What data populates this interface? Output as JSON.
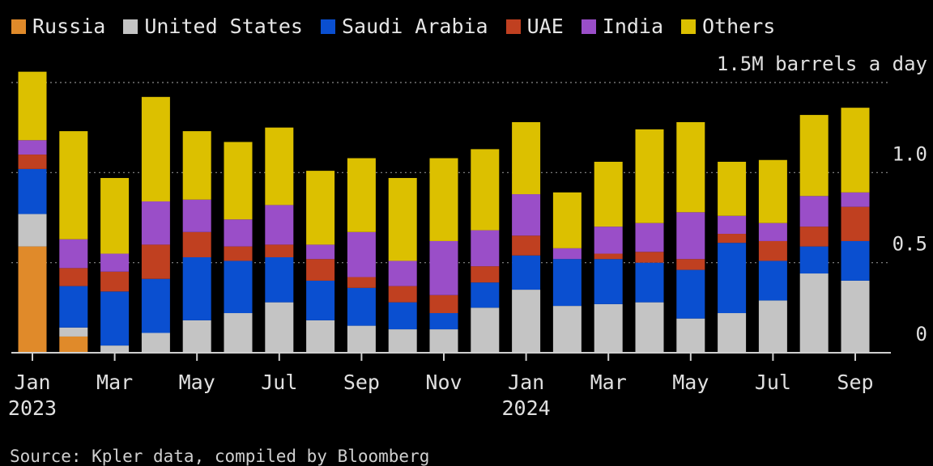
{
  "chart_data": {
    "type": "bar",
    "stacked": true,
    "unit_label": "1.5M barrels a day",
    "ylim": [
      0,
      1.5
    ],
    "y_ticks": [
      {
        "value": 0,
        "label": "0"
      },
      {
        "value": 0.5,
        "label": "0.5"
      },
      {
        "value": 1.0,
        "label": "1.0"
      },
      {
        "value": 1.5,
        "label": "1.5M barrels a day"
      }
    ],
    "x_tick_labels": [
      {
        "index": 0,
        "label": "Jan",
        "year": "2023"
      },
      {
        "index": 2,
        "label": "Mar",
        "year": ""
      },
      {
        "index": 4,
        "label": "May",
        "year": ""
      },
      {
        "index": 6,
        "label": "Jul",
        "year": ""
      },
      {
        "index": 8,
        "label": "Sep",
        "year": ""
      },
      {
        "index": 10,
        "label": "Nov",
        "year": ""
      },
      {
        "index": 12,
        "label": "Jan",
        "year": "2024"
      },
      {
        "index": 14,
        "label": "Mar",
        "year": ""
      },
      {
        "index": 16,
        "label": "May",
        "year": ""
      },
      {
        "index": 18,
        "label": "Jul",
        "year": ""
      },
      {
        "index": 20,
        "label": "Sep",
        "year": ""
      }
    ],
    "categories": [
      "Jan 2023",
      "Feb 2023",
      "Mar 2023",
      "Apr 2023",
      "May 2023",
      "Jun 2023",
      "Jul 2023",
      "Aug 2023",
      "Sep 2023",
      "Oct 2023",
      "Nov 2023",
      "Dec 2023",
      "Jan 2024",
      "Feb 2024",
      "Mar 2024",
      "Apr 2024",
      "May 2024",
      "Jun 2024",
      "Jul 2024",
      "Aug 2024",
      "Sep 2024"
    ],
    "series": [
      {
        "name": "Russia",
        "color": "#e08a2a",
        "values": [
          0.59,
          0.09,
          0,
          0,
          0,
          0,
          0,
          0,
          0,
          0,
          0,
          0,
          0,
          0,
          0,
          0,
          0,
          0,
          0,
          0,
          0
        ]
      },
      {
        "name": "United States",
        "color": "#c4c4c4",
        "values": [
          0.18,
          0.05,
          0.04,
          0.11,
          0.18,
          0.22,
          0.28,
          0.18,
          0.15,
          0.13,
          0.13,
          0.25,
          0.35,
          0.26,
          0.27,
          0.28,
          0.19,
          0.22,
          0.29,
          0.44,
          0.4
        ]
      },
      {
        "name": "Saudi Arabia",
        "color": "#0a4fd0",
        "values": [
          0.25,
          0.23,
          0.3,
          0.3,
          0.35,
          0.29,
          0.25,
          0.22,
          0.21,
          0.15,
          0.09,
          0.14,
          0.19,
          0.26,
          0.25,
          0.22,
          0.27,
          0.39,
          0.22,
          0.15,
          0.22
        ]
      },
      {
        "name": "UAE",
        "color": "#c04020",
        "values": [
          0.08,
          0.1,
          0.11,
          0.19,
          0.14,
          0.08,
          0.07,
          0.12,
          0.06,
          0.09,
          0.1,
          0.09,
          0.11,
          0,
          0.03,
          0.06,
          0.06,
          0.05,
          0.11,
          0.11,
          0.19
        ]
      },
      {
        "name": "India",
        "color": "#9a4ec8",
        "values": [
          0.08,
          0.16,
          0.1,
          0.24,
          0.18,
          0.15,
          0.22,
          0.08,
          0.25,
          0.14,
          0.3,
          0.2,
          0.23,
          0.06,
          0.15,
          0.16,
          0.26,
          0.1,
          0.1,
          0.17,
          0.08
        ]
      },
      {
        "name": "Others",
        "color": "#dcc000",
        "values": [
          0.38,
          0.6,
          0.42,
          0.58,
          0.38,
          0.43,
          0.43,
          0.41,
          0.41,
          0.46,
          0.46,
          0.45,
          0.4,
          0.31,
          0.36,
          0.52,
          0.5,
          0.3,
          0.35,
          0.45,
          0.47
        ]
      }
    ],
    "legend_position": "top-left",
    "grid": "horizontal dotted",
    "source": "Source: Kpler data, compiled by Bloomberg"
  }
}
